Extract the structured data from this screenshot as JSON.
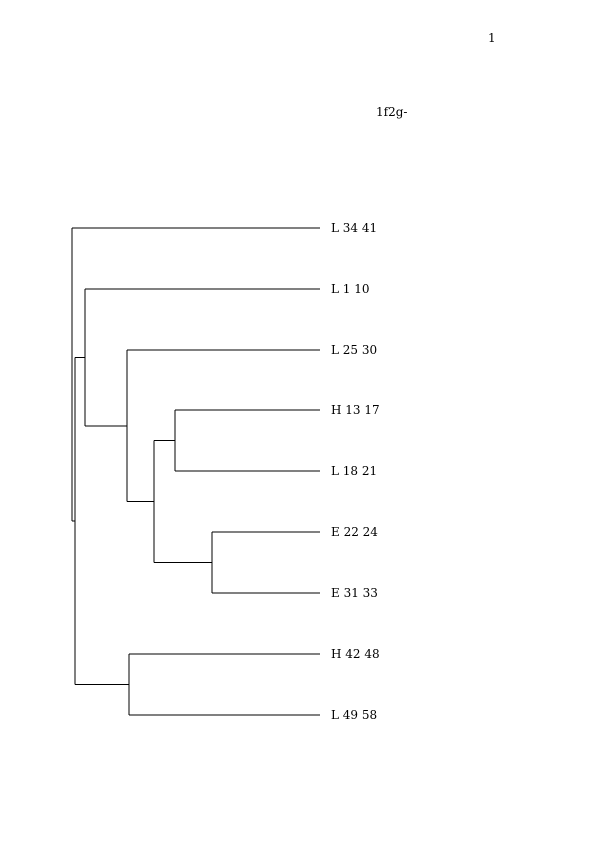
{
  "page": {
    "number": "1",
    "title": "1f2g-"
  },
  "dendrogram": {
    "leaves": [
      {
        "id": "l1",
        "label": "L 34 41"
      },
      {
        "id": "l2",
        "label": "L 1 10"
      },
      {
        "id": "l3",
        "label": "L 25 30"
      },
      {
        "id": "l4",
        "label": "H 13 17"
      },
      {
        "id": "l5",
        "label": "L 18 21"
      },
      {
        "id": "l6",
        "label": "E 22 24"
      },
      {
        "id": "l7",
        "label": "E 31 33"
      },
      {
        "id": "l8",
        "label": "H 42 48"
      },
      {
        "id": "l9",
        "label": "L 49 58"
      }
    ],
    "merges": [
      {
        "id": "n1",
        "children": [
          "l4",
          "l5"
        ]
      },
      {
        "id": "n2",
        "children": [
          "l6",
          "l7"
        ]
      },
      {
        "id": "n3",
        "children": [
          "n1",
          "n2"
        ]
      },
      {
        "id": "n4",
        "children": [
          "l3",
          "n3"
        ]
      },
      {
        "id": "n5",
        "children": [
          "l2",
          "n4"
        ]
      },
      {
        "id": "n6",
        "children": [
          "l8",
          "l9"
        ]
      },
      {
        "id": "n7",
        "children": [
          "n5",
          "n6"
        ]
      },
      {
        "id": "root",
        "children": [
          "l1",
          "n7"
        ]
      }
    ]
  }
}
